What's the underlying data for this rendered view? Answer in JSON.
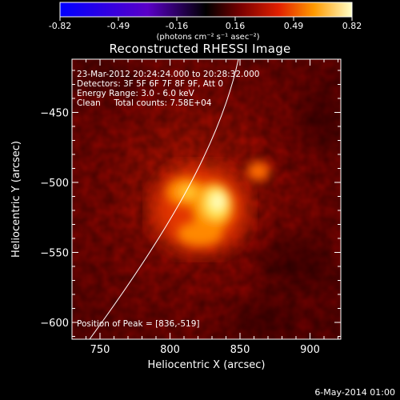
{
  "colorbar": {
    "ticks": [
      "-0.82",
      "-0.49",
      "-0.16",
      "0.16",
      "0.49",
      "0.82"
    ],
    "unit_label": "(photons cm⁻² s⁻¹ asec⁻²)"
  },
  "image": {
    "title": "Reconstructed RHESSI Image",
    "annotations": [
      "23-Mar-2012 20:24:24.000 to 20:28:32.000",
      "Detectors: 3F 5F 6F 7F 8F 9F, Att 0",
      "Energy Range: 3.0 - 6.0 keV",
      "Clean     Total counts: 7.58E+04"
    ],
    "peak_label": "Position of Peak = [836,-519]",
    "x_axis_label": "Heliocentric X (arcsec)",
    "y_axis_label": "Heliocentric Y (arcsec)",
    "x_ticks": [
      750,
      800,
      850,
      900
    ],
    "y_ticks": [
      -450,
      -500,
      -550,
      -600
    ],
    "x_range": [
      730,
      922
    ],
    "y_range": [
      -412,
      -612
    ]
  },
  "footer": {
    "date": "6-May-2014 01:00"
  }
}
